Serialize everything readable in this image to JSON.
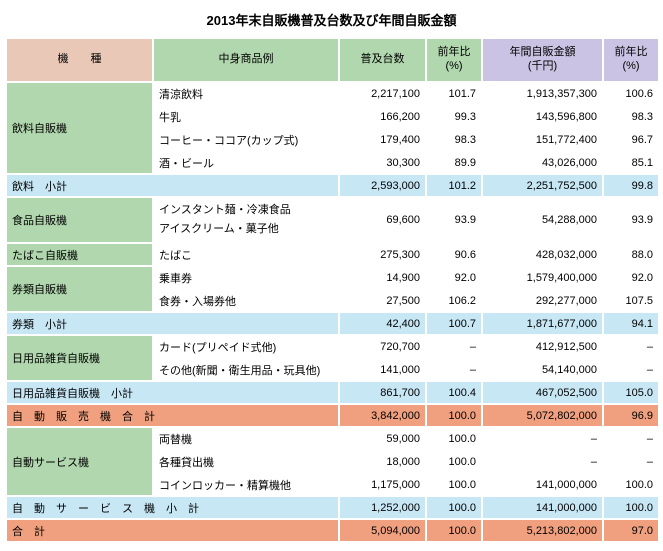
{
  "title": "2013年末自販機普及台数及び年間自販金額",
  "chart_data": {
    "type": "table",
    "title": "2013年末自販機普及台数及び年間自販金額",
    "columns": [
      {
        "line1": "機　　種",
        "line2": ""
      },
      {
        "line1": "中身商品例",
        "line2": ""
      },
      {
        "line1": "普及台数",
        "line2": ""
      },
      {
        "line1": "前年比",
        "line2": "(%)"
      },
      {
        "line1": "年間自販金額",
        "line2": "(千円)"
      },
      {
        "line1": "前年比",
        "line2": "(%)"
      }
    ],
    "colors": {
      "machine_header": "#eac8b8",
      "green": "#b0d7ad",
      "purple": "#cbc3e3",
      "subtotal_blue": "#c8e7f5",
      "total_salmon": "#f0a07e"
    },
    "rows": [
      {
        "kind": "detail",
        "machine": {
          "label": "飲料自販機",
          "rowspan": 4
        },
        "product": "清涼飲料",
        "units": "2,217,100",
        "units_yoy": "101.7",
        "amount": "1,913,357,300",
        "amount_yoy": "100.6"
      },
      {
        "kind": "detail",
        "product": "牛乳",
        "units": "166,200",
        "units_yoy": "99.3",
        "amount": "143,596,800",
        "amount_yoy": "98.3"
      },
      {
        "kind": "detail",
        "product": "コーヒー・ココア(カップ式)",
        "units": "179,400",
        "units_yoy": "98.3",
        "amount": "151,772,400",
        "amount_yoy": "96.7"
      },
      {
        "kind": "detail",
        "product": "酒・ビール",
        "units": "30,300",
        "units_yoy": "89.9",
        "amount": "43,026,000",
        "amount_yoy": "85.1"
      },
      {
        "kind": "subtotal",
        "label": "飲料　小計",
        "units": "2,593,000",
        "units_yoy": "101.2",
        "amount": "2,251,752,500",
        "amount_yoy": "99.8"
      },
      {
        "kind": "detail",
        "tall": true,
        "machine": {
          "label": "食品自販機",
          "rowspan": 1
        },
        "product": "インスタント麺・冷凍食品\nアイスクリーム・菓子他",
        "units": "69,600",
        "units_yoy": "93.9",
        "amount": "54,288,000",
        "amount_yoy": "93.9"
      },
      {
        "kind": "detail",
        "machine": {
          "label": "たばこ自販機",
          "rowspan": 1
        },
        "product": "たばこ",
        "units": "275,300",
        "units_yoy": "90.6",
        "amount": "428,032,000",
        "amount_yoy": "88.0"
      },
      {
        "kind": "detail",
        "machine": {
          "label": "券類自販機",
          "rowspan": 2
        },
        "product": "乗車券",
        "units": "14,900",
        "units_yoy": "92.0",
        "amount": "1,579,400,000",
        "amount_yoy": "92.0"
      },
      {
        "kind": "detail",
        "product": "食券・入場券他",
        "units": "27,500",
        "units_yoy": "106.2",
        "amount": "292,277,000",
        "amount_yoy": "107.5"
      },
      {
        "kind": "subtotal",
        "label": "券類　小計",
        "units": "42,400",
        "units_yoy": "100.7",
        "amount": "1,871,677,000",
        "amount_yoy": "94.1"
      },
      {
        "kind": "detail",
        "machine": {
          "label": "日用品雑貨自販機",
          "rowspan": 2
        },
        "product": "カード(プリペイド式他)",
        "units": "720,700",
        "units_yoy": "–",
        "amount": "412,912,500",
        "amount_yoy": "–"
      },
      {
        "kind": "detail",
        "product": "その他(新聞・衛生用品・玩具他)",
        "units": "141,000",
        "units_yoy": "–",
        "amount": "54,140,000",
        "amount_yoy": "–"
      },
      {
        "kind": "subtotal",
        "label": "日用品雑貨自販機　小計",
        "units": "861,700",
        "units_yoy": "100.4",
        "amount": "467,052,500",
        "amount_yoy": "105.0"
      },
      {
        "kind": "total",
        "label": "自　動　販　売　機　合　計",
        "units": "3,842,000",
        "units_yoy": "100.0",
        "amount": "5,072,802,000",
        "amount_yoy": "96.9"
      },
      {
        "kind": "detail",
        "machine": {
          "label": "自動サービス機",
          "rowspan": 3
        },
        "product": "両替機",
        "units": "59,000",
        "units_yoy": "100.0",
        "amount": "–",
        "amount_yoy": "–"
      },
      {
        "kind": "detail",
        "product": "各種貸出機",
        "units": "18,000",
        "units_yoy": "100.0",
        "amount": "–",
        "amount_yoy": "–"
      },
      {
        "kind": "detail",
        "product": "コインロッカー・精算機他",
        "units": "1,175,000",
        "units_yoy": "100.0",
        "amount": "141,000,000",
        "amount_yoy": "100.0"
      },
      {
        "kind": "subtotal",
        "label": "自　動　サ　ー　ビ　ス　機　小　計",
        "units": "1,252,000",
        "units_yoy": "100.0",
        "amount": "141,000,000",
        "amount_yoy": "100.0"
      },
      {
        "kind": "total",
        "label": "合　計",
        "units": "5,094,000",
        "units_yoy": "100.0",
        "amount": "5,213,802,000",
        "amount_yoy": "97.0"
      }
    ]
  }
}
